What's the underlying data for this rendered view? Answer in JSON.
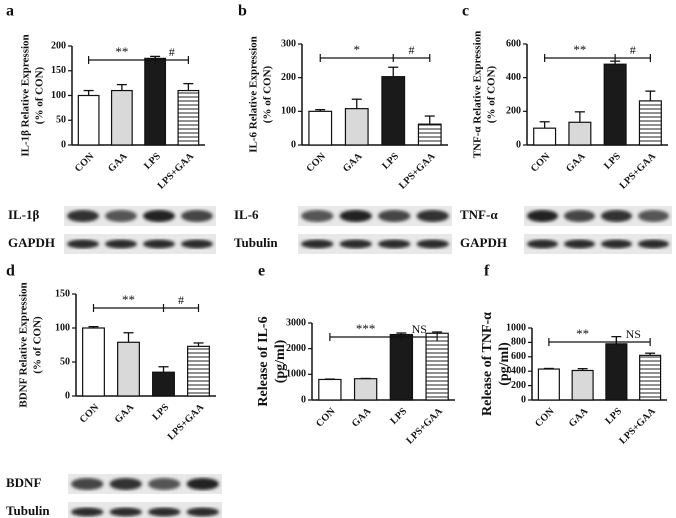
{
  "chart_data": [
    {
      "type": "bar",
      "panel": "a",
      "ylabel": [
        "IL-1β Relative Expression",
        "(% of CON)"
      ],
      "categories": [
        "CON",
        "GAA",
        "LPS",
        "LPS+GAA"
      ],
      "values": [
        100,
        110,
        175,
        110
      ],
      "errors": [
        10,
        12,
        4,
        14
      ],
      "colors": [
        "#ffffff",
        "#d9d9d9",
        "#1a1a1a",
        "#ffffff"
      ],
      "hatched": [
        false,
        false,
        false,
        true
      ],
      "ylim": [
        0,
        200
      ],
      "yticks": [
        0,
        50,
        100,
        150,
        200
      ],
      "annotations": [
        "**",
        "#"
      ],
      "blots": [
        "IL-1β",
        "GAPDH"
      ]
    },
    {
      "type": "bar",
      "panel": "b",
      "ylabel": [
        "IL-6 Relative Expression",
        "(% of CON)"
      ],
      "categories": [
        "CON",
        "GAA",
        "LPS",
        "LPS+GAA"
      ],
      "values": [
        100,
        108,
        203,
        62
      ],
      "errors": [
        5,
        28,
        28,
        24
      ],
      "colors": [
        "#ffffff",
        "#d9d9d9",
        "#1a1a1a",
        "#ffffff"
      ],
      "hatched": [
        false,
        false,
        false,
        true
      ],
      "ylim": [
        0,
        300
      ],
      "yticks": [
        0,
        100,
        200,
        300
      ],
      "annotations": [
        "*",
        "#"
      ],
      "blots": [
        "IL-6",
        "Tubulin"
      ]
    },
    {
      "type": "bar",
      "panel": "c",
      "ylabel": [
        "TNF-α  Relative Expression",
        "(% of CON)"
      ],
      "categories": [
        "CON",
        "GAA",
        "LPS",
        "LPS+GAA"
      ],
      "values": [
        100,
        135,
        480,
        262
      ],
      "errors": [
        38,
        62,
        18,
        58
      ],
      "colors": [
        "#ffffff",
        "#d9d9d9",
        "#1a1a1a",
        "#ffffff"
      ],
      "hatched": [
        false,
        false,
        false,
        true
      ],
      "ylim": [
        0,
        600
      ],
      "yticks": [
        0,
        200,
        400,
        600
      ],
      "annotations": [
        "**",
        "#"
      ],
      "blots": [
        "TNF-α",
        "GAPDH"
      ]
    },
    {
      "type": "bar",
      "panel": "d",
      "ylabel": [
        "BDNF Relative Expression",
        "(% of CON)"
      ],
      "categories": [
        "CON",
        "GAA",
        "LPS",
        "LPS+GAA"
      ],
      "values": [
        100,
        79,
        35,
        73
      ],
      "errors": [
        2,
        14,
        8,
        5
      ],
      "colors": [
        "#ffffff",
        "#d9d9d9",
        "#1a1a1a",
        "#ffffff"
      ],
      "hatched": [
        false,
        false,
        false,
        true
      ],
      "ylim": [
        0,
        150
      ],
      "yticks": [
        0,
        50,
        100,
        150
      ],
      "annotations": [
        "**",
        "#"
      ],
      "blots": [
        "BDNF",
        "Tubulin"
      ]
    },
    {
      "type": "bar",
      "panel": "e",
      "ylabel": [
        "Release of IL-6",
        "(pg/ml)"
      ],
      "categories": [
        "CON",
        "GAA",
        "LPS",
        "LPS+GAA"
      ],
      "values": [
        800,
        830,
        2550,
        2600
      ],
      "errors": [
        15,
        10,
        60,
        50
      ],
      "colors": [
        "#ffffff",
        "#d9d9d9",
        "#1a1a1a",
        "#ffffff"
      ],
      "hatched": [
        false,
        false,
        false,
        true
      ],
      "ylim": [
        0,
        3000
      ],
      "yticks": [
        0,
        1000,
        2000,
        3000
      ],
      "annotations": [
        "***",
        "NS"
      ]
    },
    {
      "type": "bar",
      "panel": "f",
      "ylabel": [
        "Release of TNF-α",
        "(pg/ml)"
      ],
      "categories": [
        "CON",
        "GAA",
        "LPS",
        "LPS+GAA"
      ],
      "values": [
        430,
        410,
        780,
        620
      ],
      "errors": [
        8,
        25,
        100,
        30
      ],
      "colors": [
        "#ffffff",
        "#d9d9d9",
        "#1a1a1a",
        "#ffffff"
      ],
      "hatched": [
        false,
        false,
        false,
        true
      ],
      "ylim": [
        0,
        1000
      ],
      "yticks": [
        0,
        200,
        400,
        600,
        800,
        1000
      ],
      "annotations": [
        "**",
        "NS"
      ]
    }
  ]
}
